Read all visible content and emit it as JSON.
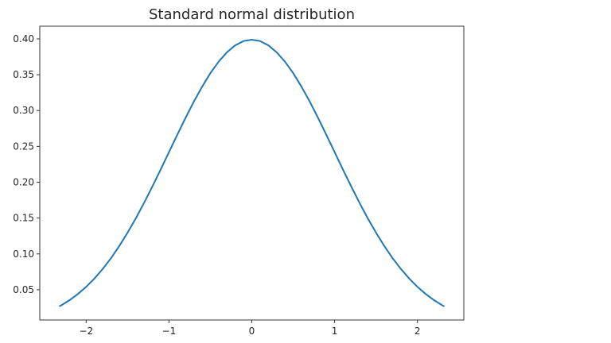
{
  "chart_data": {
    "type": "line",
    "title": "Standard normal distribution",
    "xlabel": "",
    "ylabel": "",
    "xlim": [
      -2.56,
      2.56
    ],
    "ylim": [
      0.0078,
      0.4177
    ],
    "grid": false,
    "xticks": [
      -2,
      -1,
      0,
      1,
      2
    ],
    "xtick_labels": [
      "−2",
      "−1",
      "0",
      "1",
      "2"
    ],
    "yticks": [
      0.05,
      0.1,
      0.15,
      0.2,
      0.25,
      0.3,
      0.35,
      0.4
    ],
    "ytick_labels": [
      "0.05",
      "0.10",
      "0.15",
      "0.20",
      "0.25",
      "0.30",
      "0.35",
      "0.40"
    ],
    "series": [
      {
        "color": "#1f77b4",
        "x": [
          -2.326,
          -2.3,
          -2.2,
          -2.1,
          -2.0,
          -1.9,
          -1.8,
          -1.7,
          -1.6,
          -1.5,
          -1.4,
          -1.3,
          -1.2,
          -1.1,
          -1.0,
          -0.9,
          -0.8,
          -0.7,
          -0.6,
          -0.5,
          -0.4,
          -0.3,
          -0.2,
          -0.1,
          0,
          0.1,
          0.2,
          0.3,
          0.4,
          0.5,
          0.6,
          0.7,
          0.8,
          0.9,
          1.0,
          1.1,
          1.2,
          1.3,
          1.4,
          1.5,
          1.6,
          1.7,
          1.8,
          1.9,
          2.0,
          2.1,
          2.2,
          2.3,
          2.326
        ],
        "y": [
          0.0267,
          0.0283,
          0.0355,
          0.044,
          0.054,
          0.0656,
          0.079,
          0.094,
          0.1109,
          0.1295,
          0.1497,
          0.1714,
          0.1942,
          0.2179,
          0.242,
          0.2661,
          0.2897,
          0.3123,
          0.3332,
          0.3521,
          0.3683,
          0.3814,
          0.391,
          0.397,
          0.3989,
          0.397,
          0.391,
          0.3814,
          0.3683,
          0.3521,
          0.3332,
          0.3123,
          0.2897,
          0.2661,
          0.242,
          0.2179,
          0.1942,
          0.1714,
          0.1497,
          0.1295,
          0.1109,
          0.094,
          0.079,
          0.0656,
          0.054,
          0.044,
          0.0355,
          0.0283,
          0.0267
        ]
      }
    ]
  }
}
